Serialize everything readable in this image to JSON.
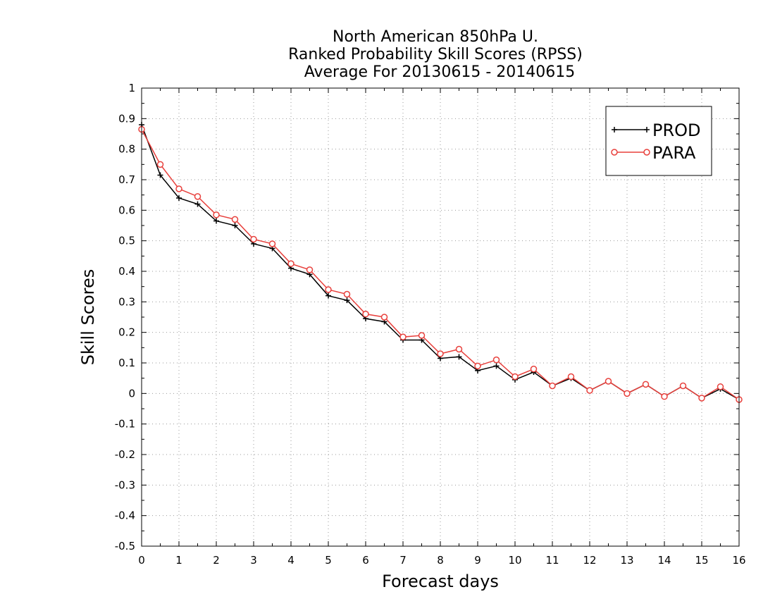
{
  "chart_data": {
    "type": "line",
    "title_lines": [
      "North American 850hPa U.",
      "Ranked Probability Skill Scores (RPSS)",
      "Average For 20130615 - 20140615"
    ],
    "xlabel": "Forecast days",
    "ylabel": "Skill Scores",
    "xlim": [
      0,
      16
    ],
    "ylim": [
      -0.5,
      1
    ],
    "x_ticks": [
      0,
      1,
      2,
      3,
      4,
      5,
      6,
      7,
      8,
      9,
      10,
      11,
      12,
      13,
      14,
      15,
      16
    ],
    "y_ticks": [
      -0.5,
      -0.4,
      -0.3,
      -0.2,
      -0.1,
      0,
      0.1,
      0.2,
      0.3,
      0.4,
      0.5,
      0.6,
      0.7,
      0.8,
      0.9,
      1
    ],
    "y_tick_labels": [
      "-0.5",
      "-0.4",
      "-0.3",
      "-0.2",
      "-0.1",
      "0",
      "0.1",
      "0.2",
      "0.3",
      "0.4",
      "0.5",
      "0.6",
      "0.7",
      "0.8",
      "0.9",
      "1"
    ],
    "grid": true,
    "legend_position": "top-right",
    "x": [
      0,
      0.5,
      1,
      1.5,
      2,
      2.5,
      3,
      3.5,
      4,
      4.5,
      5,
      5.5,
      6,
      6.5,
      7,
      7.5,
      8,
      8.5,
      9,
      9.5,
      10,
      10.5,
      11,
      11.5,
      12,
      12.5,
      13,
      13.5,
      14,
      14.5,
      15,
      15.5,
      16
    ],
    "series": [
      {
        "name": "PROD",
        "color": "#000000",
        "marker": "plus",
        "values": [
          0.88,
          0.715,
          0.64,
          0.62,
          0.565,
          0.55,
          0.49,
          0.475,
          0.41,
          0.39,
          0.32,
          0.305,
          0.245,
          0.235,
          0.175,
          0.175,
          0.115,
          0.12,
          0.075,
          0.09,
          0.045,
          0.07,
          0.025,
          0.05,
          0.01,
          0.04,
          0.0,
          0.03,
          -0.01,
          0.025,
          -0.015,
          0.015,
          -0.02
        ]
      },
      {
        "name": "PARA",
        "color": "#e8403c",
        "marker": "circle",
        "values": [
          0.865,
          0.75,
          0.67,
          0.645,
          0.585,
          0.57,
          0.505,
          0.49,
          0.425,
          0.405,
          0.34,
          0.325,
          0.26,
          0.25,
          0.185,
          0.19,
          0.13,
          0.145,
          0.09,
          0.11,
          0.055,
          0.08,
          0.025,
          0.055,
          0.01,
          0.04,
          0.0,
          0.03,
          -0.01,
          0.025,
          -0.015,
          0.022,
          -0.02
        ]
      }
    ]
  }
}
